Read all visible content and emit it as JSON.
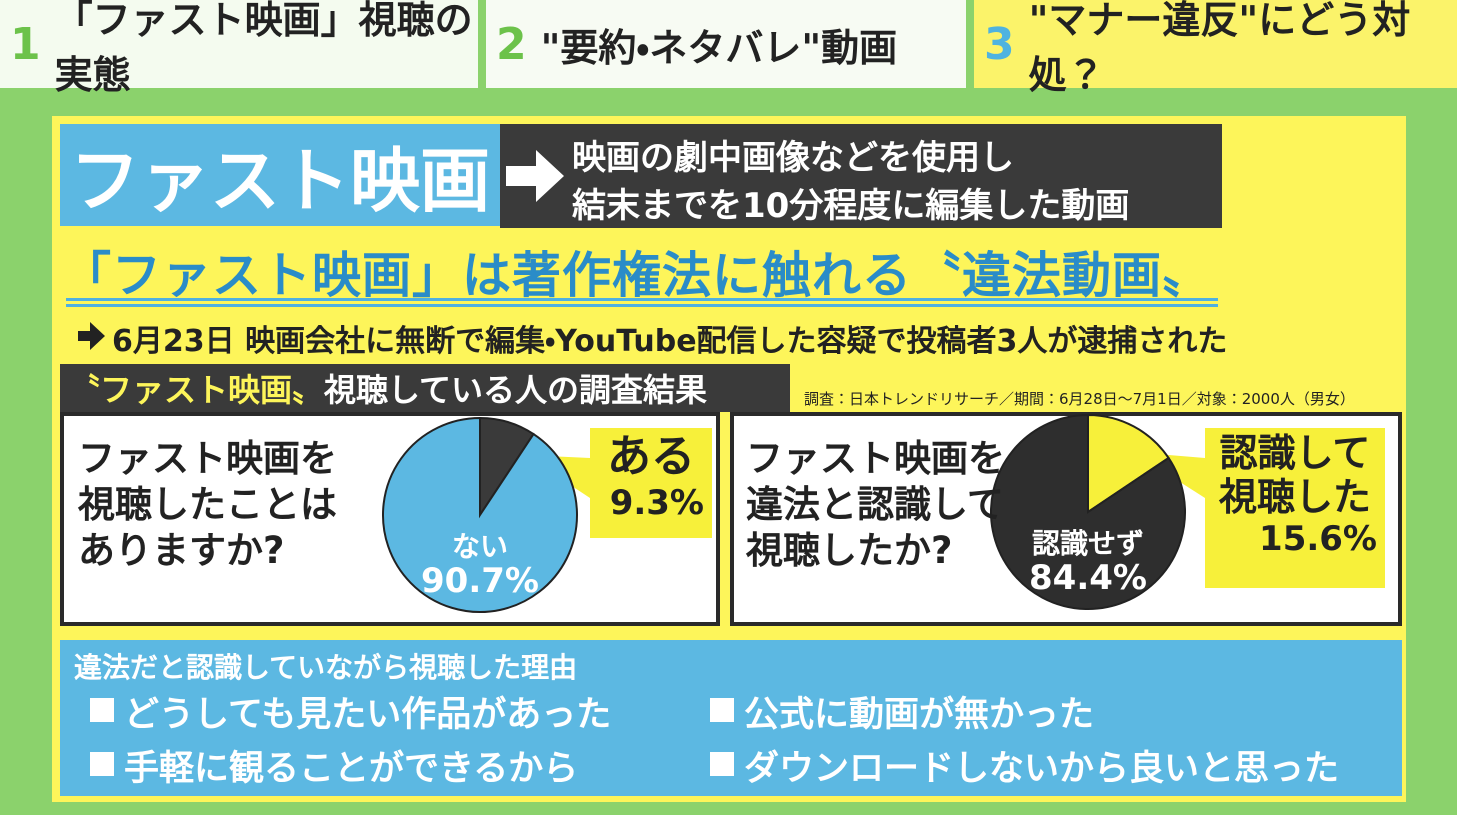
{
  "tabs": [
    {
      "number": "1",
      "label": "「ファスト映画」視聴の実態"
    },
    {
      "number": "2",
      "label": "\"要約・ネタバレ\"動画"
    },
    {
      "number": "3",
      "label": "\"マナー違反\"にどう対処？"
    }
  ],
  "definition": {
    "term": "ファスト映画",
    "lines": [
      "映画の劇中画像などを使用し",
      "結末までを10分程度に編集した動画"
    ]
  },
  "headline": "「ファスト映画」は著作権法に触れる〝違法動画〟",
  "news": "6月23日 映画会社に無断で編集・YouTube配信した容疑で投稿者3人が逮捕された",
  "survey": {
    "title_emphasis": "〝ファスト映画〟",
    "title_rest": "視聴している人の調査結果",
    "source": "調査：日本トレンドリサーチ／期間：6月28日〜7月1日／対象：2000人（男女）"
  },
  "chart_data": [
    {
      "type": "pie",
      "title": [
        "ファスト映画を",
        "視聴したことは",
        "ありますか?"
      ],
      "categories": [
        "ある",
        "ない"
      ],
      "values": [
        9.3,
        90.7
      ],
      "value_labels": [
        "9.3%",
        "90.7%"
      ],
      "colors": [
        "#3a3a3a",
        "#5cb8e2"
      ]
    },
    {
      "type": "pie",
      "title": [
        "ファスト映画を",
        "違法と認識して",
        "視聴したか?"
      ],
      "categories": [
        "認識して視聴した",
        "認識せず"
      ],
      "values": [
        15.6,
        84.4
      ],
      "value_labels": [
        "15.6%",
        "84.4%"
      ],
      "colors": [
        "#f7f03a",
        "#2e2e2e"
      ]
    }
  ],
  "reasons": {
    "title": "違法だと認識していながら視聴した理由",
    "items": [
      "どうしても見たい作品があった",
      "公式に動画が無かった",
      "手軽に観ることができるから",
      "ダウンロードしないから良いと思った"
    ]
  }
}
